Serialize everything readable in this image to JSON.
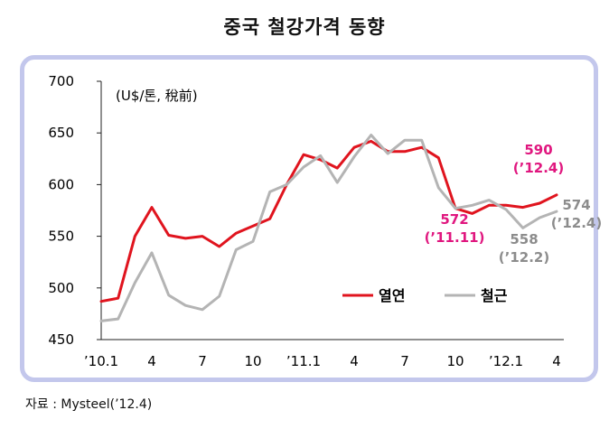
{
  "title": "중국 철강가격 동향",
  "source": "자료 : Mysteel(’12.4)",
  "chart_data": {
    "type": "line",
    "unit_label": "(U$/톤, 稅前)",
    "ylim": [
      450,
      700
    ],
    "yticks": [
      450,
      500,
      550,
      600,
      650,
      700
    ],
    "x_tick_labels": [
      {
        "i": 0,
        "label": "’10.1"
      },
      {
        "i": 3,
        "label": "4"
      },
      {
        "i": 6,
        "label": "7"
      },
      {
        "i": 9,
        "label": "10"
      },
      {
        "i": 12,
        "label": "’11.1"
      },
      {
        "i": 15,
        "label": "4"
      },
      {
        "i": 18,
        "label": "7"
      },
      {
        "i": 21,
        "label": "10"
      },
      {
        "i": 24,
        "label": "’12.1"
      },
      {
        "i": 27,
        "label": "4"
      }
    ],
    "x": [
      0,
      1,
      2,
      3,
      4,
      5,
      6,
      7,
      8,
      9,
      10,
      11,
      12,
      13,
      14,
      15,
      16,
      17,
      18,
      19,
      20,
      21,
      22,
      23,
      24,
      25,
      26,
      27
    ],
    "series": [
      {
        "name": "열연",
        "color": "#e0141e",
        "values": [
          487,
          490,
          550,
          578,
          551,
          548,
          550,
          540,
          553,
          560,
          567,
          600,
          629,
          624,
          616,
          636,
          642,
          632,
          632,
          636,
          626,
          577,
          572,
          580,
          580,
          578,
          582,
          590
        ]
      },
      {
        "name": "철근",
        "color": "#b4b4b4",
        "values": [
          468,
          470,
          505,
          534,
          493,
          483,
          479,
          492,
          537,
          545,
          593,
          600,
          617,
          628,
          602,
          627,
          648,
          630,
          643,
          643,
          597,
          577,
          580,
          585,
          576,
          558,
          568,
          574
        ]
      }
    ],
    "annotations": [
      {
        "series": "열연",
        "i": 21,
        "text": [
          "572",
          "(’11.11)"
        ],
        "color": "#e0177f"
      },
      {
        "series": "열연",
        "i": 27,
        "text": [
          "590",
          "(’12.4)"
        ],
        "color": "#e0177f"
      },
      {
        "series": "철근",
        "i": 25,
        "text": [
          "558",
          "(’12.2)"
        ],
        "color": "#8c8c8c"
      },
      {
        "series": "철근",
        "i": 27,
        "text": [
          "574",
          "(’12.4)"
        ],
        "color": "#8c8c8c"
      }
    ],
    "legend": "bottom-right",
    "grid": false
  }
}
